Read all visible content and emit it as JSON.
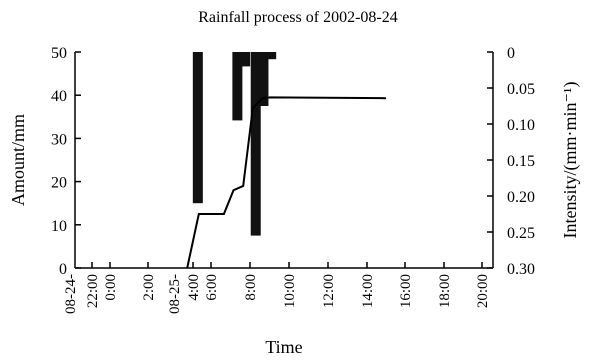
{
  "chart_data": {
    "type": "bar+line",
    "title": "Rainfall process of 2002-08-24",
    "xlabel": "Time",
    "ylabel_left": "Amount/mm",
    "ylabel_right": "Intensity/(mm·min⁻¹)",
    "ylim_left": [
      0,
      50
    ],
    "ylim_right": [
      0,
      0.3
    ],
    "right_axis_inverted": true,
    "y_ticks_left": [
      "0",
      "10",
      "20",
      "30",
      "40",
      "50"
    ],
    "y_ticks_right": [
      "0",
      "0.05",
      "0.10",
      "0.15",
      "0.20",
      "0.25",
      "0.30"
    ],
    "x_ticks": [
      "08-24-",
      "22:00",
      "0:00",
      "2:00",
      "08-25-",
      "4:00",
      "6:00",
      "8:00",
      "10:00",
      "12:00",
      "14:00",
      "16:00",
      "18:00",
      "20:00",
      "22:00"
    ],
    "grid": false,
    "series": [
      {
        "kind": "bar",
        "axis": "right",
        "x_hours": [
          4.5,
          8.6,
          9.4,
          10.5,
          11.3,
          12.1
        ],
        "values": [
          0.21,
          0.095,
          0.02,
          0.255,
          0.075,
          0.01
        ]
      },
      {
        "kind": "line",
        "axis": "left",
        "x_hours": [
          3.4,
          4.6,
          7.2,
          8.2,
          9.2,
          10.2,
          11.2,
          12.0,
          24.0
        ],
        "values": [
          0,
          12.5,
          12.5,
          18,
          19,
          37,
          39.3,
          39.5,
          39.3
        ]
      }
    ]
  }
}
